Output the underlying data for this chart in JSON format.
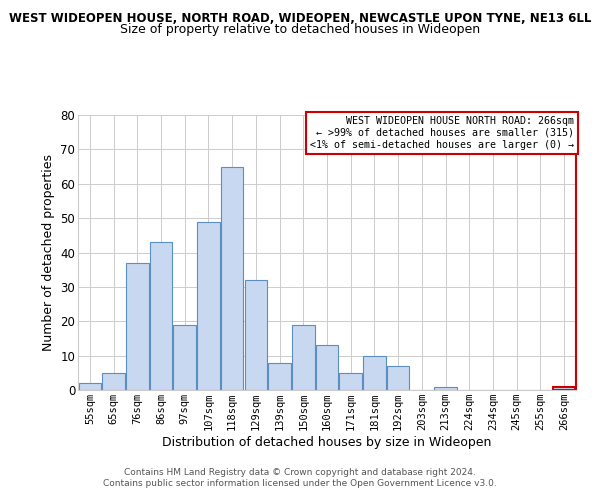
{
  "title_line1": "WEST WIDEOPEN HOUSE, NORTH ROAD, WIDEOPEN, NEWCASTLE UPON TYNE, NE13 6LL",
  "title_line2": "Size of property relative to detached houses in Wideopen",
  "xlabel": "Distribution of detached houses by size in Wideopen",
  "ylabel": "Number of detached properties",
  "categories": [
    "55sqm",
    "65sqm",
    "76sqm",
    "86sqm",
    "97sqm",
    "107sqm",
    "118sqm",
    "129sqm",
    "139sqm",
    "150sqm",
    "160sqm",
    "171sqm",
    "181sqm",
    "192sqm",
    "203sqm",
    "213sqm",
    "224sqm",
    "234sqm",
    "245sqm",
    "255sqm",
    "266sqm"
  ],
  "values": [
    2,
    5,
    37,
    43,
    19,
    49,
    65,
    32,
    8,
    19,
    13,
    5,
    10,
    7,
    0,
    1,
    0,
    0,
    0,
    0,
    1
  ],
  "bar_color": "#c8d8f0",
  "bar_edge_color": "#5a8fc0",
  "highlight_index": 20,
  "highlight_edge_color": "#cc0000",
  "ylim": [
    0,
    80
  ],
  "yticks": [
    0,
    10,
    20,
    30,
    40,
    50,
    60,
    70,
    80
  ],
  "annotation_title": "WEST WIDEOPEN HOUSE NORTH ROAD: 266sqm",
  "annotation_line1": "← >99% of detached houses are smaller (315)",
  "annotation_line2": "<1% of semi-detached houses are larger (0) →",
  "annotation_edge_color": "#cc0000",
  "footer_line1": "Contains HM Land Registry data © Crown copyright and database right 2024.",
  "footer_line2": "Contains public sector information licensed under the Open Government Licence v3.0.",
  "background_color": "#ffffff",
  "grid_color": "#cccccc"
}
